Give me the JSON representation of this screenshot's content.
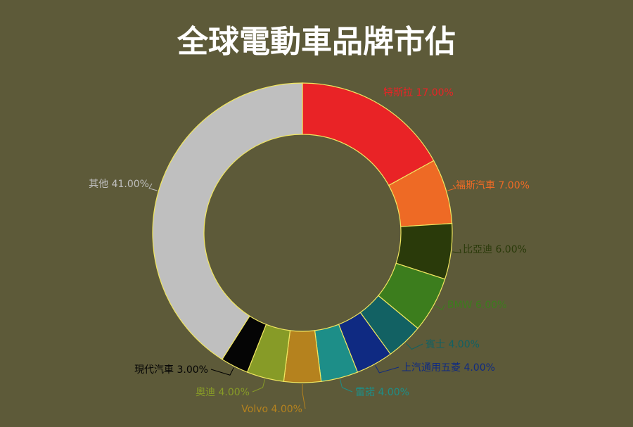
{
  "chart_data": {
    "type": "pie",
    "subtype": "donut",
    "title": "全球電動車品牌市佔",
    "legend": "none",
    "slices": [
      {
        "label": "特斯拉",
        "value": 17.0,
        "value_text": "17.00%",
        "color": "#e92326"
      },
      {
        "label": "福斯汽車",
        "value": 7.0,
        "value_text": "7.00%",
        "color": "#ee6a25"
      },
      {
        "label": "比亞迪",
        "value": 6.0,
        "value_text": "6.00%",
        "color": "#2a3a0a"
      },
      {
        "label": "BMW",
        "value": 6.0,
        "value_text": "6.00%",
        "color": "#3c7d1d"
      },
      {
        "label": "賓士",
        "value": 4.0,
        "value_text": "4.00%",
        "color": "#126163"
      },
      {
        "label": "上汽通用五菱",
        "value": 4.0,
        "value_text": "4.00%",
        "color": "#0f2a82"
      },
      {
        "label": "雷諾",
        "value": 4.0,
        "value_text": "4.00%",
        "color": "#1d8e88"
      },
      {
        "label": "Volvo",
        "value": 4.0,
        "value_text": "4.00%",
        "color": "#b5821e"
      },
      {
        "label": "奧迪",
        "value": 4.0,
        "value_text": "4.00%",
        "color": "#879b27"
      },
      {
        "label": "現代汽車",
        "value": 3.0,
        "value_text": "3.00%",
        "color": "#050505"
      },
      {
        "label": "其他",
        "value": 41.0,
        "value_text": "41.00%",
        "color": "#bfbfbf"
      }
    ]
  },
  "colors": {
    "background": "#5d5a39",
    "slice_border": "#f0e660",
    "leader_line": "#000000"
  }
}
